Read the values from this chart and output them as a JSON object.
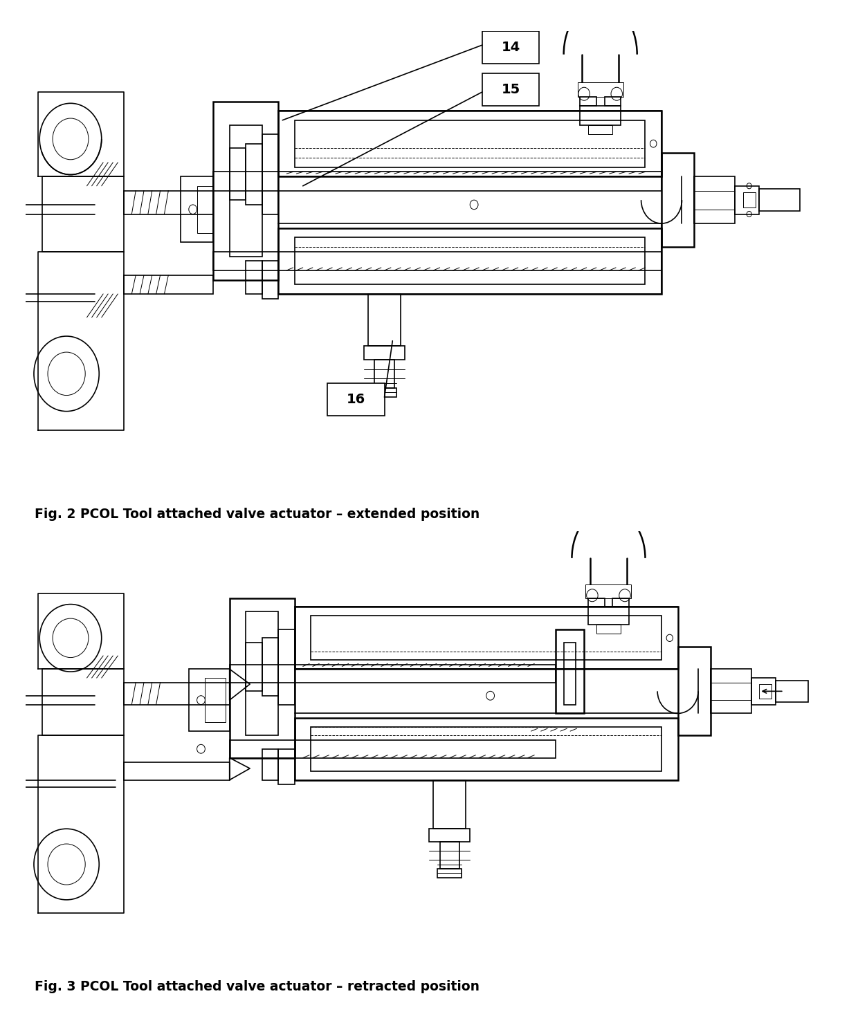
{
  "fig_width": 12.4,
  "fig_height": 14.92,
  "dpi": 100,
  "bg_color": "#ffffff",
  "line_color": "#000000",
  "caption1": "Fig. 2 PCOL Tool attached valve actuator – extended position",
  "caption2": "Fig. 3 PCOL Tool attached valve actuator – retracted position",
  "caption_fontsize": 13.5,
  "label14": "14",
  "label15": "15",
  "label16": "16"
}
